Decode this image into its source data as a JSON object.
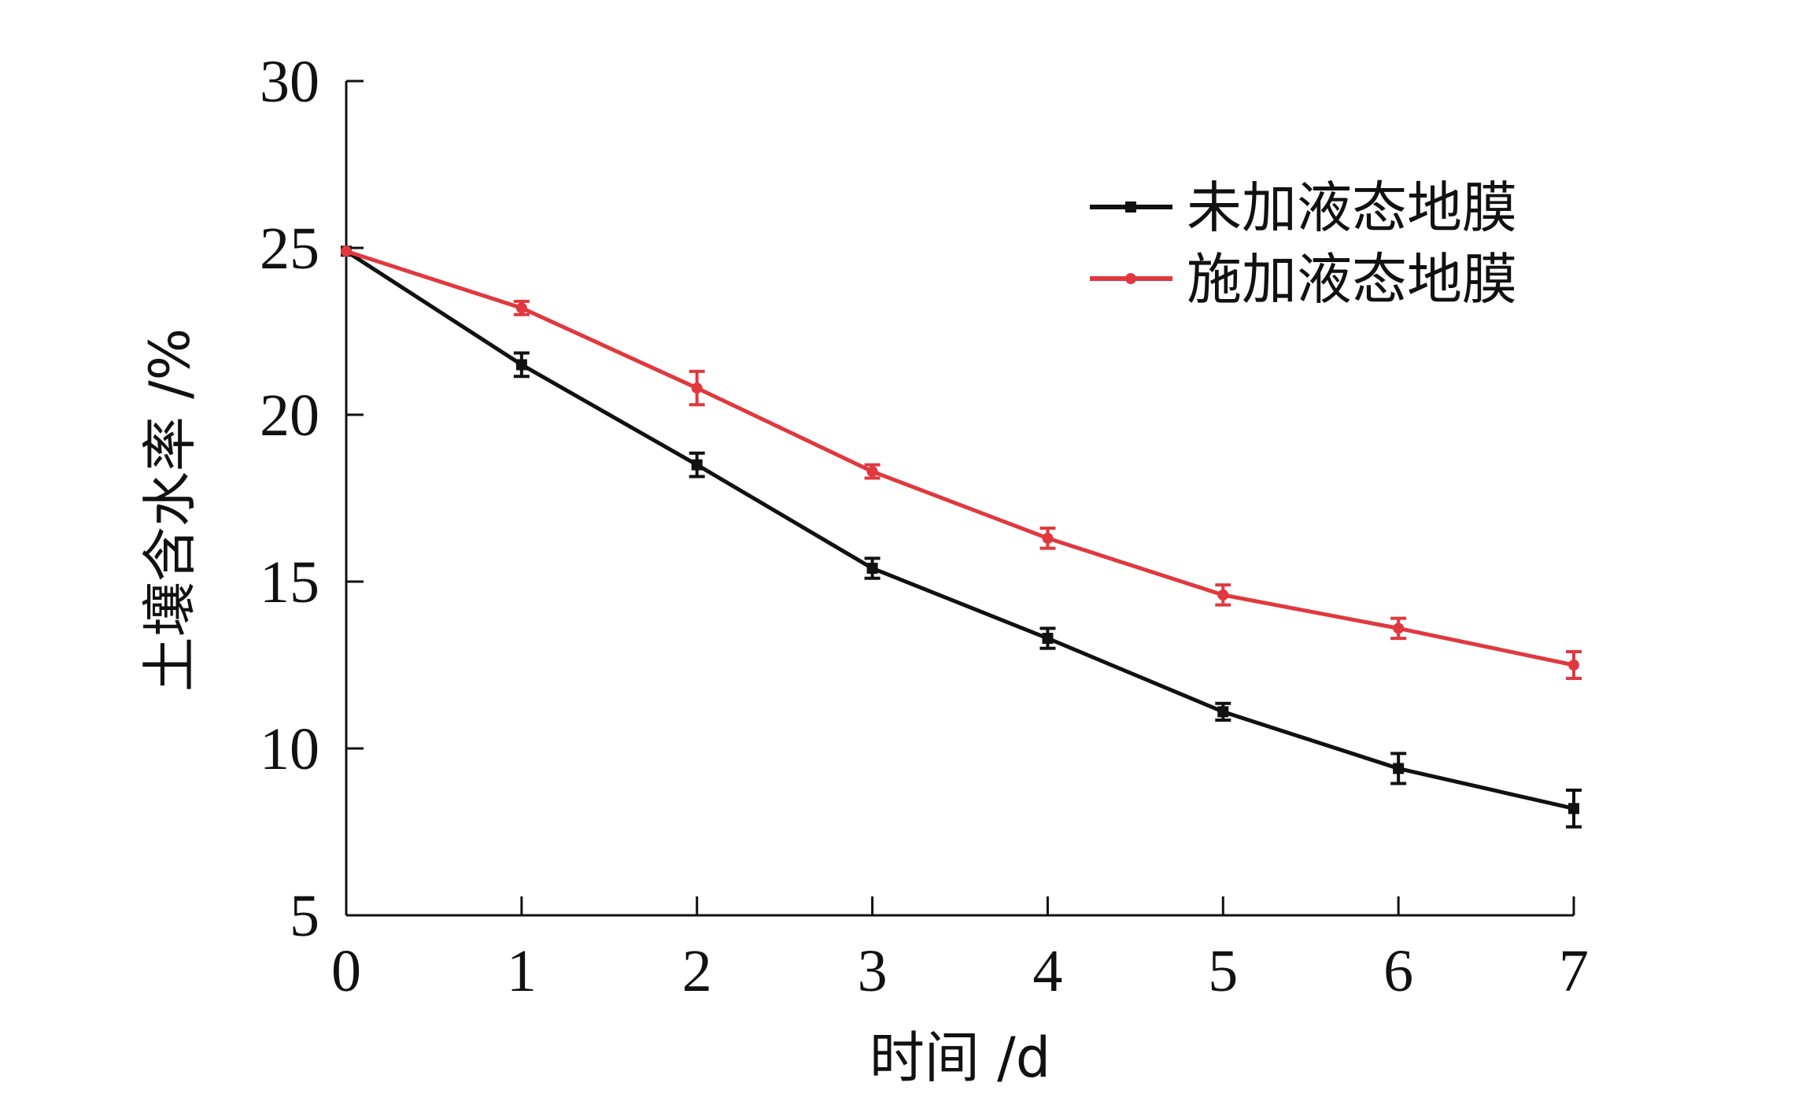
{
  "chart_data": {
    "type": "line",
    "title": "",
    "xlabel": "时间 /d",
    "ylabel": "土壤含水率 /%",
    "x": [
      0,
      1,
      2,
      3,
      4,
      5,
      6,
      7
    ],
    "xlim": [
      0,
      7
    ],
    "ylim": [
      5,
      30
    ],
    "x_ticks": [
      "0",
      "1",
      "2",
      "3",
      "4",
      "5",
      "6",
      "7"
    ],
    "y_ticks": [
      "5",
      "10",
      "15",
      "20",
      "25",
      "30"
    ],
    "grid": false,
    "legend_position": "top-right",
    "series": [
      {
        "name": "未加液态地膜",
        "color": "#111111",
        "marker": "square",
        "values": [
          24.9,
          21.5,
          18.5,
          15.4,
          13.3,
          11.1,
          9.4,
          8.2
        ],
        "errors": [
          0,
          0.35,
          0.35,
          0.3,
          0.3,
          0.25,
          0.45,
          0.55
        ]
      },
      {
        "name": "施加液态地膜",
        "color": "#e0383e",
        "marker": "circle",
        "values": [
          24.9,
          23.2,
          20.8,
          18.3,
          16.3,
          14.6,
          13.6,
          12.5
        ],
        "errors": [
          0,
          0.2,
          0.5,
          0.2,
          0.3,
          0.3,
          0.3,
          0.4
        ]
      }
    ]
  }
}
